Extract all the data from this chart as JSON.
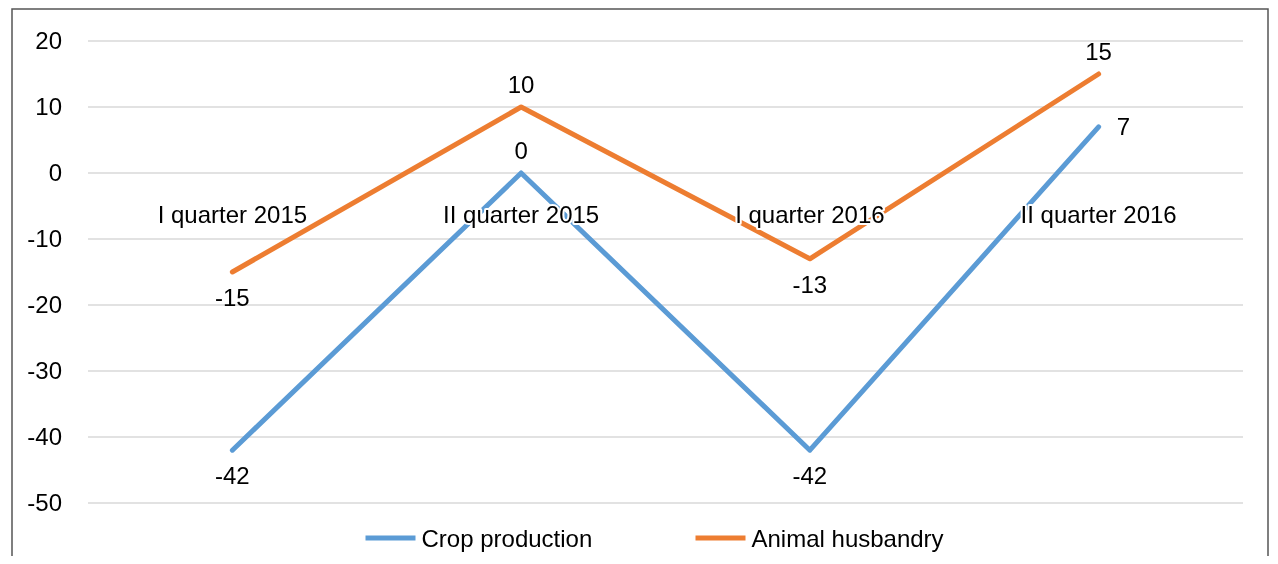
{
  "chart_data": {
    "type": "line",
    "categories": [
      "I quarter 2015",
      "II quarter 2015",
      "I quarter 2016",
      "II quarter 2016"
    ],
    "series": [
      {
        "name": "Crop production",
        "color": "#5b9bd5",
        "values": [
          -42,
          0,
          -42,
          7
        ]
      },
      {
        "name": "Animal husbandry",
        "color": "#ed7d31",
        "values": [
          -15,
          10,
          -13,
          15
        ]
      }
    ],
    "ylim": [
      -50,
      20
    ],
    "yticks": [
      -50,
      -40,
      -30,
      -20,
      -10,
      0,
      10,
      20
    ],
    "grid": "y",
    "legend": "bottom",
    "data_labels": true,
    "marker": "none",
    "line_style": "solid"
  }
}
